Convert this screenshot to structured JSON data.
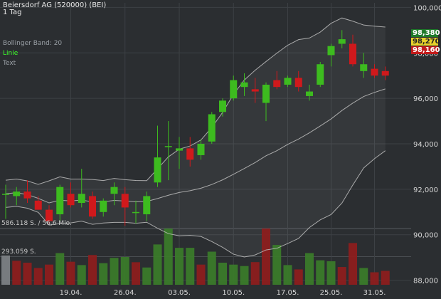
{
  "header": {
    "title": "Beiersdorf AG (520000) (BEI)",
    "period": "1 Tag"
  },
  "legend": {
    "bollinger": "Bollinger Band: 20",
    "line": "Linie",
    "text": "Text"
  },
  "volume_labels": {
    "top": "586.118 S. / 56,6 Mio.",
    "mid": "293.059 S."
  },
  "price_badges": [
    {
      "label": "98,380",
      "bg": "#1e7a2a",
      "fg": "#ffffff"
    },
    {
      "label": "98,270",
      "bg": "#e8d22a",
      "fg": "#222222"
    },
    {
      "label": "98,160",
      "bg": "#c21a1a",
      "fg": "#ffffff"
    }
  ],
  "colors": {
    "up": "#3dbb1f",
    "down": "#d0191c",
    "vol_up": "#3a7a2a",
    "vol_down": "#8c1e1e",
    "band_line": "#bfbfbf",
    "grid": "#3d4145"
  },
  "chart_data": {
    "type": "candlestick",
    "title": "Beiersdorf AG (520000) (BEI)",
    "ylim": [
      87.8,
      100.2
    ],
    "y_ticks": [
      "100,000",
      "98,000",
      "96,000",
      "94,000",
      "92,000",
      "90,000",
      "88,000"
    ],
    "y_tick_values": [
      100,
      98,
      96,
      94,
      92,
      90,
      88
    ],
    "x_ticks": [
      {
        "label": "19.04.",
        "index": 6
      },
      {
        "label": "26.04.",
        "index": 11
      },
      {
        "label": "03.05.",
        "index": 16
      },
      {
        "label": "10.05.",
        "index": 21
      },
      {
        "label": "17.05.",
        "index": 26
      },
      {
        "label": "25.05.",
        "index": 30
      },
      {
        "label": "31.05.",
        "index": 34
      }
    ],
    "candles": [
      {
        "o": 91.8,
        "h": 92.2,
        "l": 90.7,
        "c": 91.8
      },
      {
        "o": 91.7,
        "h": 92.1,
        "l": 91.3,
        "c": 91.9
      },
      {
        "o": 91.9,
        "h": 92.4,
        "l": 91.4,
        "c": 91.6
      },
      {
        "o": 91.5,
        "h": 91.7,
        "l": 91.1,
        "c": 91.1
      },
      {
        "o": 91.1,
        "h": 91.3,
        "l": 90.5,
        "c": 90.6
      },
      {
        "o": 90.9,
        "h": 92.2,
        "l": 90.6,
        "c": 92.1
      },
      {
        "o": 91.8,
        "h": 92.3,
        "l": 91.2,
        "c": 91.3
      },
      {
        "o": 91.4,
        "h": 92.9,
        "l": 91.2,
        "c": 91.8
      },
      {
        "o": 91.7,
        "h": 91.9,
        "l": 90.7,
        "c": 90.8
      },
      {
        "o": 91.0,
        "h": 91.6,
        "l": 90.8,
        "c": 91.5
      },
      {
        "o": 91.8,
        "h": 92.3,
        "l": 91.3,
        "c": 92.1
      },
      {
        "o": 91.8,
        "h": 92.1,
        "l": 90.4,
        "c": 91.2
      },
      {
        "o": 91.0,
        "h": 91.5,
        "l": 90.5,
        "c": 91.0
      },
      {
        "o": 90.9,
        "h": 91.9,
        "l": 90.6,
        "c": 91.7
      },
      {
        "o": 92.3,
        "h": 94.8,
        "l": 92.1,
        "c": 93.4
      },
      {
        "o": 93.9,
        "h": 95.0,
        "l": 92.4,
        "c": 93.9
      },
      {
        "o": 93.7,
        "h": 94.3,
        "l": 92.9,
        "c": 93.8
      },
      {
        "o": 93.8,
        "h": 94.3,
        "l": 93.0,
        "c": 93.3
      },
      {
        "o": 93.5,
        "h": 94.2,
        "l": 93.3,
        "c": 94.0
      },
      {
        "o": 94.1,
        "h": 95.4,
        "l": 94.0,
        "c": 95.3
      },
      {
        "o": 95.4,
        "h": 96.0,
        "l": 95.2,
        "c": 95.9
      },
      {
        "o": 96.0,
        "h": 97.0,
        "l": 95.9,
        "c": 96.8
      },
      {
        "o": 96.5,
        "h": 97.1,
        "l": 96.1,
        "c": 96.7
      },
      {
        "o": 96.4,
        "h": 96.9,
        "l": 95.8,
        "c": 96.3
      },
      {
        "o": 95.8,
        "h": 96.7,
        "l": 95.0,
        "c": 96.6
      },
      {
        "o": 96.8,
        "h": 97.2,
        "l": 96.4,
        "c": 96.5
      },
      {
        "o": 96.6,
        "h": 97.0,
        "l": 96.5,
        "c": 96.9
      },
      {
        "o": 96.9,
        "h": 97.2,
        "l": 96.3,
        "c": 96.5
      },
      {
        "o": 96.1,
        "h": 96.6,
        "l": 95.9,
        "c": 96.3
      },
      {
        "o": 96.6,
        "h": 97.6,
        "l": 96.5,
        "c": 97.5
      },
      {
        "o": 97.9,
        "h": 98.4,
        "l": 97.4,
        "c": 98.3
      },
      {
        "o": 98.4,
        "h": 99.0,
        "l": 98.2,
        "c": 98.6
      },
      {
        "o": 98.4,
        "h": 98.8,
        "l": 97.4,
        "c": 97.5
      },
      {
        "o": 97.2,
        "h": 98.0,
        "l": 96.9,
        "c": 97.5
      },
      {
        "o": 97.3,
        "h": 97.5,
        "l": 96.9,
        "c": 97.0
      },
      {
        "o": 97.2,
        "h": 97.4,
        "l": 96.8,
        "c": 97.0
      }
    ],
    "volume": {
      "max": 586118,
      "mid": 293059,
      "values": [
        305000,
        250000,
        230000,
        175000,
        210000,
        330000,
        240000,
        205000,
        310000,
        225000,
        280000,
        290000,
        235000,
        180000,
        420000,
        586000,
        385000,
        385000,
        210000,
        345000,
        230000,
        210000,
        195000,
        236000,
        586000,
        415000,
        205000,
        160000,
        330000,
        255000,
        245000,
        185000,
        435000,
        175000,
        130000,
        145000
      ],
      "directions": [
        "up",
        "down",
        "down",
        "down",
        "down",
        "up",
        "down",
        "up",
        "down",
        "up",
        "up",
        "up",
        "down",
        "up",
        "up",
        "up",
        "up",
        "up",
        "down",
        "up",
        "up",
        "up",
        "up",
        "down",
        "down",
        "up",
        "up",
        "down",
        "up",
        "up",
        "up",
        "down",
        "down",
        "up",
        "down",
        "down"
      ]
    }
  }
}
